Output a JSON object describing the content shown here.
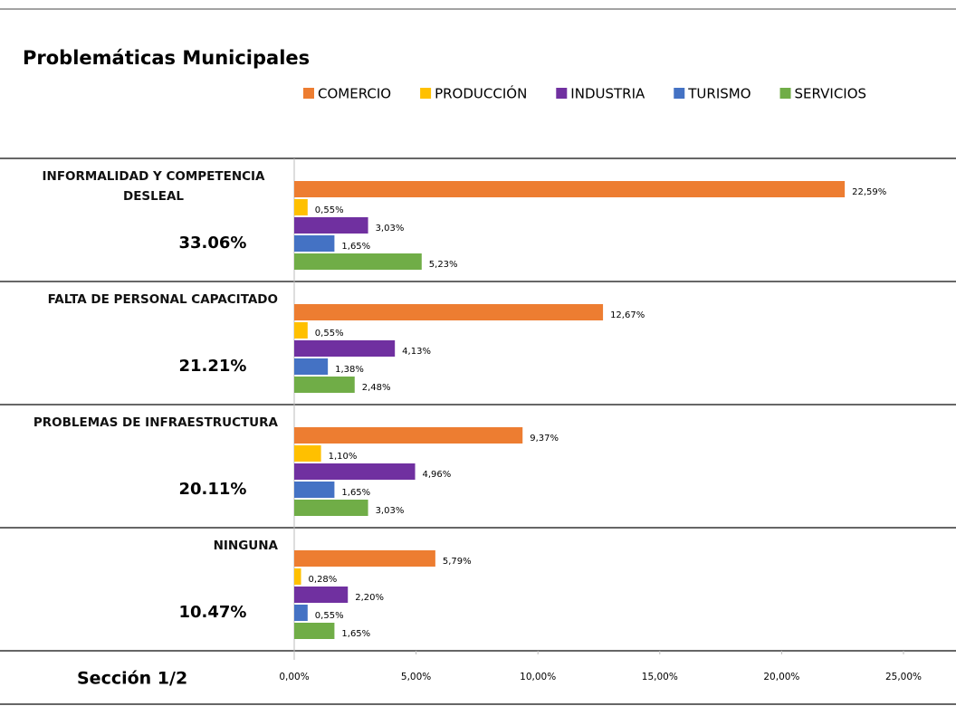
{
  "chart_data": {
    "type": "grouped-hbar",
    "title": "Problemáticas Municipales",
    "footer": "Sección 1/2",
    "categories": [
      "INFORMALIDAD Y COMPETENCIA DESLEAL",
      "FALTA DE PERSONAL CAPACITADO",
      "PROBLEMAS DE INFRAESTRUCTURA",
      "NINGUNA"
    ],
    "totals": [
      "33.06%",
      "21.21%",
      "20.11%",
      "10.47%"
    ],
    "series": [
      {
        "name": "COMERCIO",
        "color": "#ed7d31",
        "values": [
          22.59,
          12.67,
          9.37,
          5.79
        ],
        "value_labels": [
          "22,59%",
          "12,67%",
          "9,37%",
          "5,79%"
        ]
      },
      {
        "name": "PRODUCCIÓN",
        "color": "#ffc000",
        "values": [
          0.55,
          0.55,
          1.1,
          0.28
        ],
        "value_labels": [
          "0,55%",
          "0,55%",
          "1,10%",
          "0,28%"
        ]
      },
      {
        "name": "INDUSTRIA",
        "color": "#7030a0",
        "values": [
          3.03,
          4.13,
          4.96,
          2.2
        ],
        "value_labels": [
          "3,03%",
          "4,13%",
          "4,96%",
          "2,20%"
        ]
      },
      {
        "name": "TURISMO",
        "color": "#4472c4",
        "values": [
          1.65,
          1.38,
          1.65,
          0.55
        ],
        "value_labels": [
          "1,65%",
          "1,38%",
          "1,65%",
          "0,55%"
        ]
      },
      {
        "name": "SERVICIOS",
        "color": "#70ad47",
        "values": [
          5.23,
          2.48,
          3.03,
          1.65
        ],
        "value_labels": [
          "5,23%",
          "2,48%",
          "3,03%",
          "1,65%"
        ]
      }
    ],
    "xlim": [
      0,
      25
    ],
    "xticks": [
      {
        "value": 0,
        "label": "0,00%"
      },
      {
        "value": 5,
        "label": "5,00%"
      },
      {
        "value": 10,
        "label": "10,00%"
      },
      {
        "value": 15,
        "label": "15,00%"
      },
      {
        "value": 20,
        "label": "20,00%"
      },
      {
        "value": 25,
        "label": "25,00%"
      }
    ]
  }
}
